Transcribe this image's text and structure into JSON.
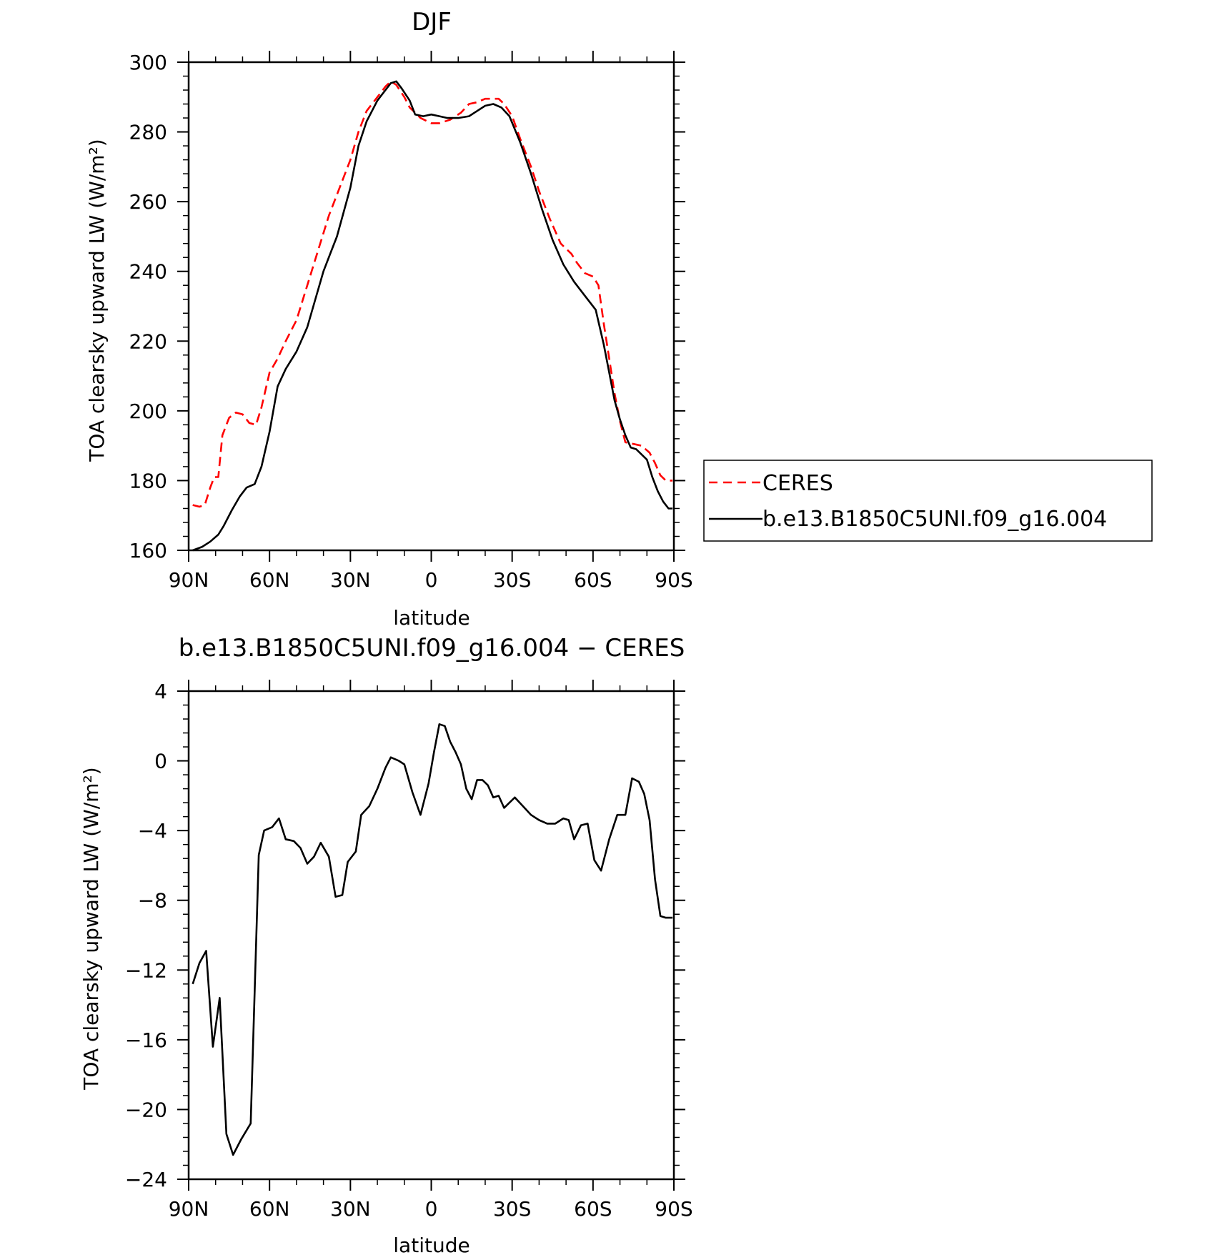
{
  "chart_data": [
    {
      "type": "line",
      "title": "DJF",
      "xlabel": "latitude",
      "ylabel": "TOA clearsky upward LW (W/m²)",
      "xlim": [
        90,
        -90
      ],
      "ylim": [
        160,
        300
      ],
      "x_ticks": [
        90,
        60,
        30,
        0,
        -30,
        -60,
        -90
      ],
      "x_tick_labels": [
        "90N",
        "60N",
        "30N",
        "0",
        "30S",
        "60S",
        "90S"
      ],
      "y_ticks": [
        160,
        180,
        200,
        220,
        240,
        260,
        280,
        300
      ],
      "y_tick_labels": [
        "160",
        "180",
        "200",
        "220",
        "240",
        "260",
        "280",
        "300"
      ],
      "grid": false,
      "legend_position": "outside-right",
      "series": [
        {
          "name": "CERES",
          "color": "#ff0000",
          "dash": "dashed",
          "x": [
            88.5,
            86,
            84,
            82,
            80.5,
            79,
            77.5,
            75,
            72.5,
            70,
            67.5,
            65,
            63,
            60,
            57,
            54,
            50,
            46,
            42,
            38,
            35,
            30,
            27,
            24,
            20,
            17,
            15,
            13,
            10,
            8,
            4,
            0,
            -3,
            -7,
            -11,
            -14,
            -17,
            -20,
            -23,
            -25,
            -27,
            -30,
            -33,
            -37,
            -40,
            -44,
            -48,
            -52,
            -54,
            -57,
            -60,
            -62,
            -64,
            -66,
            -68,
            -70,
            -72,
            -75,
            -78,
            -81,
            -83,
            -85,
            -87,
            -89.5
          ],
          "y": [
            173,
            172.5,
            173,
            178,
            181,
            181,
            193,
            198,
            199.5,
            199,
            196.5,
            196,
            201,
            211,
            215,
            220,
            226,
            236,
            246,
            256,
            262,
            272,
            280,
            286,
            290,
            293,
            294.5,
            293.5,
            290,
            287,
            284,
            282.5,
            282.5,
            283.5,
            285.5,
            288,
            288.5,
            289.5,
            289.5,
            289.5,
            288,
            284.5,
            278,
            270,
            263,
            255,
            248,
            245,
            242.5,
            239.5,
            238.5,
            236,
            225,
            215,
            205,
            197,
            191,
            190.5,
            190,
            188,
            185,
            181.5,
            180,
            180
          ]
        },
        {
          "name": "b.e13.B1850C5UNI.f09_g16.004",
          "color": "#000000",
          "dash": "solid",
          "x": [
            88.5,
            85,
            82,
            79,
            77,
            74,
            71,
            68.5,
            65.5,
            63,
            60,
            57,
            54,
            50,
            46,
            43,
            40,
            37,
            35,
            30,
            27,
            24,
            20,
            17,
            15,
            13,
            11,
            8,
            6,
            3,
            0,
            -3,
            -6,
            -10,
            -14,
            -17,
            -20,
            -23,
            -26,
            -29,
            -33,
            -37,
            -41,
            -45,
            -49,
            -53,
            -57,
            -61,
            -64,
            -66,
            -68,
            -70,
            -72,
            -74,
            -76,
            -78,
            -80,
            -82,
            -84,
            -86,
            -88,
            -89.5
          ],
          "y": [
            160,
            161,
            162.5,
            164.5,
            167,
            171.5,
            175.5,
            178,
            179,
            184,
            194,
            207,
            212,
            217,
            224,
            232,
            240,
            246,
            250,
            264,
            276,
            283,
            289,
            292,
            294,
            294.5,
            292.5,
            289,
            285,
            284.5,
            285,
            284.5,
            284,
            284,
            284.5,
            286,
            287.5,
            288,
            287,
            284.5,
            277,
            268,
            258,
            249,
            242,
            237,
            233,
            229,
            219,
            211,
            203,
            197.5,
            193,
            189.5,
            189,
            187.5,
            186,
            181,
            177,
            174,
            172,
            172
          ]
        }
      ]
    },
    {
      "type": "line",
      "title": "b.e13.B1850C5UNI.f09_g16.004 − CERES",
      "xlabel": "latitude",
      "ylabel": "TOA clearsky upward LW (W/m²)",
      "xlim": [
        90,
        -90
      ],
      "ylim": [
        -24,
        4
      ],
      "x_ticks": [
        90,
        60,
        30,
        0,
        -30,
        -60,
        -90
      ],
      "x_tick_labels": [
        "90N",
        "60N",
        "30N",
        "0",
        "30S",
        "60S",
        "90S"
      ],
      "y_ticks": [
        -24,
        -20,
        -16,
        -12,
        -8,
        -4,
        0,
        4
      ],
      "y_tick_labels": [
        "−24",
        "−20",
        "−16",
        "−12",
        "−8",
        "−4",
        "0",
        "4"
      ],
      "grid": false,
      "series": [
        {
          "name": "",
          "color": "#000000",
          "dash": "solid",
          "x": [
            88.5,
            86,
            83.5,
            81,
            78.5,
            76,
            73.5,
            70.5,
            67,
            64,
            62,
            59,
            56.5,
            54,
            51,
            48.5,
            46,
            43.5,
            41,
            38,
            35.5,
            33,
            31,
            28,
            26,
            23,
            20,
            17,
            15,
            12,
            10,
            7,
            4,
            1,
            -1,
            -3,
            -5,
            -7,
            -9,
            -11,
            -13,
            -15,
            -17,
            -19,
            -21,
            -23,
            -25,
            -27,
            -29,
            -31,
            -34,
            -37,
            -40,
            -43,
            -46,
            -49,
            -51,
            -53,
            -55.5,
            -58,
            -60.5,
            -63,
            -66,
            -69,
            -72,
            -74.5,
            -77,
            -79,
            -81,
            -83,
            -85,
            -87,
            -89.5
          ],
          "y": [
            -12.8,
            -11.6,
            -10.9,
            -16.4,
            -13.6,
            -21.4,
            -22.6,
            -21.7,
            -20.8,
            -5.4,
            -4.0,
            -3.8,
            -3.3,
            -4.5,
            -4.6,
            -5.0,
            -5.9,
            -5.5,
            -4.7,
            -5.5,
            -7.8,
            -7.7,
            -5.8,
            -5.2,
            -3.1,
            -2.6,
            -1.6,
            -0.4,
            0.2,
            0.0,
            -0.2,
            -1.8,
            -3.1,
            -1.3,
            0.5,
            2.1,
            2.0,
            1.1,
            0.5,
            -0.2,
            -1.6,
            -2.2,
            -1.1,
            -1.1,
            -1.4,
            -2.1,
            -2.0,
            -2.7,
            -2.4,
            -2.1,
            -2.6,
            -3.1,
            -3.4,
            -3.6,
            -3.6,
            -3.3,
            -3.4,
            -4.5,
            -3.7,
            -3.6,
            -5.7,
            -6.3,
            -4.5,
            -3.1,
            -3.1,
            -1.0,
            -1.2,
            -1.9,
            -3.4,
            -6.8,
            -8.9,
            -9.0,
            -9.0
          ]
        }
      ]
    }
  ]
}
